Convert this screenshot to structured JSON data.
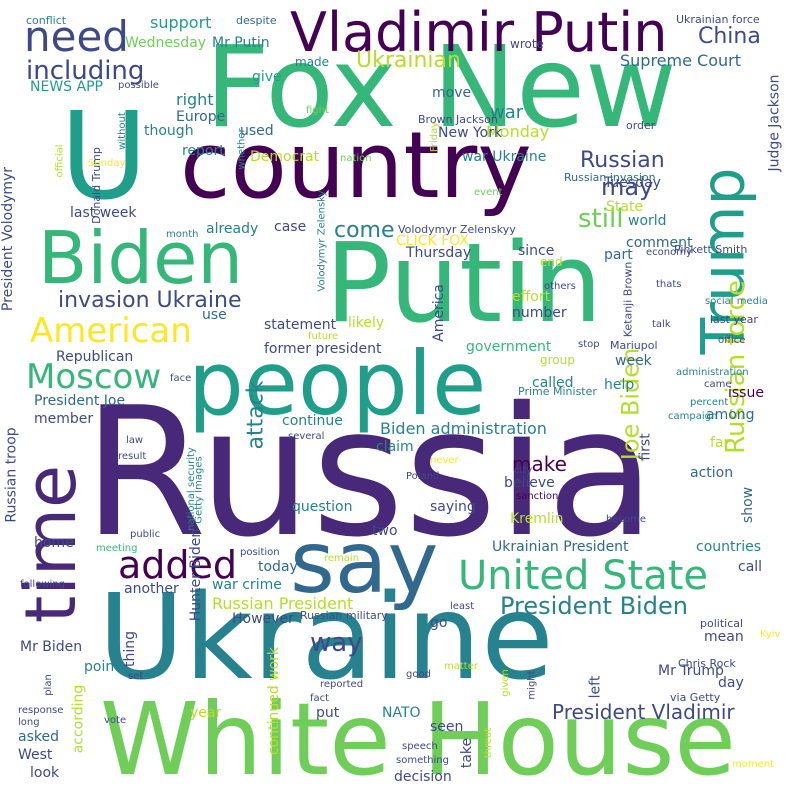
{
  "colors": {
    "background": "#ffffff",
    "palette": [
      "#440154",
      "#482878",
      "#3e4989",
      "#31688e",
      "#26828e",
      "#1f9e89",
      "#35b779",
      "#6ece58",
      "#b5de2b",
      "#fde725"
    ]
  },
  "words": [
    {
      "text": "Russia",
      "color": "#482878"
    },
    {
      "text": "Ukraine",
      "color": "#26828e"
    },
    {
      "text": "Putin",
      "color": "#35b779"
    },
    {
      "text": "Fox New",
      "color": "#35b779"
    },
    {
      "text": "U",
      "color": "#1f9e89"
    },
    {
      "text": "country",
      "color": "#440154"
    },
    {
      "text": "White House",
      "color": "#6ece58"
    },
    {
      "text": "people",
      "color": "#1f9e89"
    },
    {
      "text": "Biden",
      "color": "#35b779"
    },
    {
      "text": "Vladimir Putin",
      "color": "#440154"
    },
    {
      "text": "say",
      "color": "#31688e"
    },
    {
      "text": "time",
      "color": "#482878"
    },
    {
      "text": "Trump",
      "color": "#1f9e89"
    },
    {
      "text": "United State",
      "color": "#35b779"
    },
    {
      "text": "added",
      "color": "#440154"
    },
    {
      "text": "American",
      "color": "#fde725"
    },
    {
      "text": "Moscow",
      "color": "#35b779"
    },
    {
      "text": "need",
      "color": "#3e4989"
    },
    {
      "text": "Russian force",
      "color": "#b5de2b"
    },
    {
      "text": "President Biden",
      "color": "#26828e"
    },
    {
      "text": "including",
      "color": "#3e4989"
    },
    {
      "text": "Joe Biden",
      "color": "#b5de2b"
    },
    {
      "text": "invasion Ukraine",
      "color": "#3e4989"
    },
    {
      "text": "Ukrainian",
      "color": "#b5de2b"
    },
    {
      "text": "President Vladimir",
      "color": "#3e4989"
    },
    {
      "text": "China",
      "color": "#3e4989"
    },
    {
      "text": "still",
      "color": "#6ece58"
    },
    {
      "text": "Russian",
      "color": "#3e4989"
    },
    {
      "text": "way",
      "color": "#3e4989"
    },
    {
      "text": "come",
      "color": "#26828e"
    },
    {
      "text": "may",
      "color": "#3e4989"
    },
    {
      "text": "make",
      "color": "#440154"
    },
    {
      "text": "attack",
      "color": "#26828e"
    },
    {
      "text": "Supreme Court",
      "color": "#31688e"
    },
    {
      "text": "Russian President",
      "color": "#b5de2b"
    },
    {
      "text": "Biden administration",
      "color": "#26828e"
    },
    {
      "text": "Ukrainian President",
      "color": "#31688e"
    },
    {
      "text": "war",
      "color": "#26828e"
    },
    {
      "text": "support",
      "color": "#1f9e89"
    },
    {
      "text": "Wednesday",
      "color": "#6ece58"
    },
    {
      "text": "Mr Putin",
      "color": "#26828e"
    },
    {
      "text": "give",
      "color": "#1f9e89"
    },
    {
      "text": "made",
      "color": "#26828e"
    },
    {
      "text": "Monday",
      "color": "#b5de2b"
    },
    {
      "text": "move",
      "color": "#31688e"
    },
    {
      "text": "right",
      "color": "#26828e"
    },
    {
      "text": "Europe",
      "color": "#31688e"
    },
    {
      "text": "though",
      "color": "#26828e"
    },
    {
      "text": "used",
      "color": "#31688e"
    },
    {
      "text": "report",
      "color": "#26828e"
    },
    {
      "text": "New York",
      "color": "#3e4989"
    },
    {
      "text": "Democrat",
      "color": "#b5de2b"
    },
    {
      "text": "war Ukraine",
      "color": "#26828e"
    },
    {
      "text": "Tuesday",
      "color": "#3e4989"
    },
    {
      "text": "State",
      "color": "#b5de2b"
    },
    {
      "text": "world",
      "color": "#26828e"
    },
    {
      "text": "last week",
      "color": "#3e4989"
    },
    {
      "text": "case",
      "color": "#3e4989"
    },
    {
      "text": "already",
      "color": "#26828e"
    },
    {
      "text": "CLICK FOX",
      "color": "#fde725"
    },
    {
      "text": "Thursday",
      "color": "#3e4989"
    },
    {
      "text": "comment",
      "color": "#31688e"
    },
    {
      "text": "end",
      "color": "#b5de2b"
    },
    {
      "text": "since",
      "color": "#3e4989"
    },
    {
      "text": "part",
      "color": "#31688e"
    },
    {
      "text": "effort",
      "color": "#b5de2b"
    },
    {
      "text": "number",
      "color": "#3e4989"
    },
    {
      "text": "statement",
      "color": "#3e4989"
    },
    {
      "text": "likely",
      "color": "#b5de2b"
    },
    {
      "text": "government",
      "color": "#35b779"
    },
    {
      "text": "former president",
      "color": "#3e4989"
    },
    {
      "text": "Republican",
      "color": "#3e4989"
    },
    {
      "text": "group",
      "color": "#b5de2b"
    },
    {
      "text": "called",
      "color": "#26828e"
    },
    {
      "text": "week",
      "color": "#31688e"
    },
    {
      "text": "help",
      "color": "#26828e"
    },
    {
      "text": "issue",
      "color": "#440154"
    },
    {
      "text": "continue",
      "color": "#26828e"
    },
    {
      "text": "among",
      "color": "#31688e"
    },
    {
      "text": "claim",
      "color": "#26828e"
    },
    {
      "text": "believe",
      "color": "#3e4989"
    },
    {
      "text": "action",
      "color": "#31688e"
    },
    {
      "text": "saying",
      "color": "#3e4989"
    },
    {
      "text": "question",
      "color": "#26828e"
    },
    {
      "text": "two",
      "color": "#3e4989"
    },
    {
      "text": "Kremlin",
      "color": "#b5de2b"
    },
    {
      "text": "today",
      "color": "#31688e"
    },
    {
      "text": "another",
      "color": "#3e4989"
    },
    {
      "text": "war crime",
      "color": "#26828e"
    },
    {
      "text": "home",
      "color": "#3e4989"
    },
    {
      "text": "countries",
      "color": "#26828e"
    },
    {
      "text": "call",
      "color": "#3e4989"
    },
    {
      "text": "However",
      "color": "#3e4989"
    },
    {
      "text": "mean",
      "color": "#3e4989"
    },
    {
      "text": "Mr Biden",
      "color": "#3e4989"
    },
    {
      "text": "point",
      "color": "#26828e"
    },
    {
      "text": "Mr Trump",
      "color": "#3e4989"
    },
    {
      "text": "day",
      "color": "#3e4989"
    },
    {
      "text": "year",
      "color": "#b5de2b"
    },
    {
      "text": "put",
      "color": "#3e4989"
    },
    {
      "text": "NATO",
      "color": "#26828e"
    },
    {
      "text": "seen",
      "color": "#3e4989"
    },
    {
      "text": "asked",
      "color": "#31688e"
    },
    {
      "text": "West",
      "color": "#3e4989"
    },
    {
      "text": "look",
      "color": "#3e4989"
    },
    {
      "text": "decision",
      "color": "#3e4989"
    },
    {
      "text": "left",
      "color": "#3e4989"
    },
    {
      "text": "go",
      "color": "#3e4989"
    },
    {
      "text": "first",
      "color": "#3e4989"
    },
    {
      "text": "show",
      "color": "#31688e"
    },
    {
      "text": "take",
      "color": "#3e4989"
    },
    {
      "text": "NEWS APP",
      "color": "#1f9e89"
    },
    {
      "text": "President Volodymyr",
      "color": "#3e4989"
    },
    {
      "text": "Russian troop",
      "color": "#3e4989"
    },
    {
      "text": "according",
      "color": "#b5de2b"
    },
    {
      "text": "continued work",
      "color": "#b5de2b"
    },
    {
      "text": "Hunter Biden",
      "color": "#3e4989"
    },
    {
      "text": "Judge Jackson",
      "color": "#3e4989"
    },
    {
      "text": "President Joe",
      "color": "#31688e"
    },
    {
      "text": "member",
      "color": "#3e4989"
    },
    {
      "text": "far",
      "color": "#b5de2b"
    },
    {
      "text": "America",
      "color": "#3e4989"
    },
    {
      "text": "use",
      "color": "#31688e"
    },
    {
      "text": "thing",
      "color": "#3e4989"
    },
    {
      "text": "conflict",
      "color": "#26828e"
    },
    {
      "text": "despite",
      "color": "#31688e"
    },
    {
      "text": "Ukrainian force",
      "color": "#3e4989"
    },
    {
      "text": "wrote",
      "color": "#3e4989"
    },
    {
      "text": "Pinkett Smith",
      "color": "#3e4989"
    },
    {
      "text": "Brown Jackson",
      "color": "#3e4989"
    },
    {
      "text": "Russian invasion",
      "color": "#31688e"
    },
    {
      "text": "Volodymyr Zelenskyy",
      "color": "#3e4989"
    },
    {
      "text": "Volodymyr Zelensky",
      "color": "#26828e"
    },
    {
      "text": "Ketanji Brown",
      "color": "#3e4989"
    },
    {
      "text": "Mariupol",
      "color": "#3e4989"
    },
    {
      "text": "Prime Minister",
      "color": "#26828e"
    },
    {
      "text": "Chris Rock",
      "color": "#3e4989"
    },
    {
      "text": "via Getty",
      "color": "#3e4989"
    },
    {
      "text": "Donald Trump",
      "color": "#3e4989"
    },
    {
      "text": "Getty Images",
      "color": "#26828e"
    },
    {
      "text": "national security",
      "color": "#26828e"
    },
    {
      "text": "Russian military",
      "color": "#3e4989"
    },
    {
      "text": "social media",
      "color": "#26828e"
    },
    {
      "text": "last year",
      "color": "#3e4989"
    },
    {
      "text": "campaign",
      "color": "#26828e"
    },
    {
      "text": "percent",
      "color": "#26828e"
    },
    {
      "text": "administration",
      "color": "#26828e"
    },
    {
      "text": "political",
      "color": "#3e4989"
    },
    {
      "text": "possible",
      "color": "#3e4989"
    },
    {
      "text": "order",
      "color": "#3e4989"
    },
    {
      "text": "whether",
      "color": "#26828e"
    },
    {
      "text": "official",
      "color": "#b5de2b"
    },
    {
      "text": "without",
      "color": "#26828e"
    },
    {
      "text": "Sunday",
      "color": "#fde725"
    },
    {
      "text": "fight",
      "color": "#6ece58"
    },
    {
      "text": "nation",
      "color": "#6ece58"
    },
    {
      "text": "Friday",
      "color": "#b5de2b"
    },
    {
      "text": "event",
      "color": "#6ece58"
    },
    {
      "text": "month",
      "color": "#26828e"
    },
    {
      "text": "economy",
      "color": "#3e4989"
    },
    {
      "text": "thats",
      "color": "#3e4989"
    },
    {
      "text": "others",
      "color": "#3e4989"
    },
    {
      "text": "stop",
      "color": "#3e4989"
    },
    {
      "text": "talk",
      "color": "#3e4989"
    },
    {
      "text": "office",
      "color": "#3e4989"
    },
    {
      "text": "came",
      "color": "#3e4989"
    },
    {
      "text": "future",
      "color": "#b5de2b"
    },
    {
      "text": "face",
      "color": "#3e4989"
    },
    {
      "text": "law",
      "color": "#3e4989"
    },
    {
      "text": "several",
      "color": "#3e4989"
    },
    {
      "text": "result",
      "color": "#3e4989"
    },
    {
      "text": "never",
      "color": "#fde725"
    },
    {
      "text": "Poland",
      "color": "#3e4989"
    },
    {
      "text": "city",
      "color": "#3e4989"
    },
    {
      "text": "sanction",
      "color": "#440154"
    },
    {
      "text": "become",
      "color": "#3e4989"
    },
    {
      "text": "public",
      "color": "#3e4989"
    },
    {
      "text": "meeting",
      "color": "#35b779"
    },
    {
      "text": "position",
      "color": "#3e4989"
    },
    {
      "text": "remain",
      "color": "#b5de2b"
    },
    {
      "text": "following",
      "color": "#3e4989"
    },
    {
      "text": "least",
      "color": "#3e4989"
    },
    {
      "text": "Kyiv",
      "color": "#fde725"
    },
    {
      "text": "good",
      "color": "#3e4989"
    },
    {
      "text": "plan",
      "color": "#3e4989"
    },
    {
      "text": "set",
      "color": "#3e4989"
    },
    {
      "text": "reported",
      "color": "#3e4989"
    },
    {
      "text": "fact",
      "color": "#3e4989"
    },
    {
      "text": "matter",
      "color": "#b5de2b"
    },
    {
      "text": "given",
      "color": "#b5de2b"
    },
    {
      "text": "might",
      "color": "#3e4989"
    },
    {
      "text": "response",
      "color": "#3e4989"
    },
    {
      "text": "long",
      "color": "#3e4989"
    },
    {
      "text": "vote",
      "color": "#3e4989"
    },
    {
      "text": "speech",
      "color": "#3e4989"
    },
    {
      "text": "something",
      "color": "#3e4989"
    },
    {
      "text": "threat",
      "color": "#b5de2b"
    },
    {
      "text": "moment",
      "color": "#fde725"
    }
  ]
}
